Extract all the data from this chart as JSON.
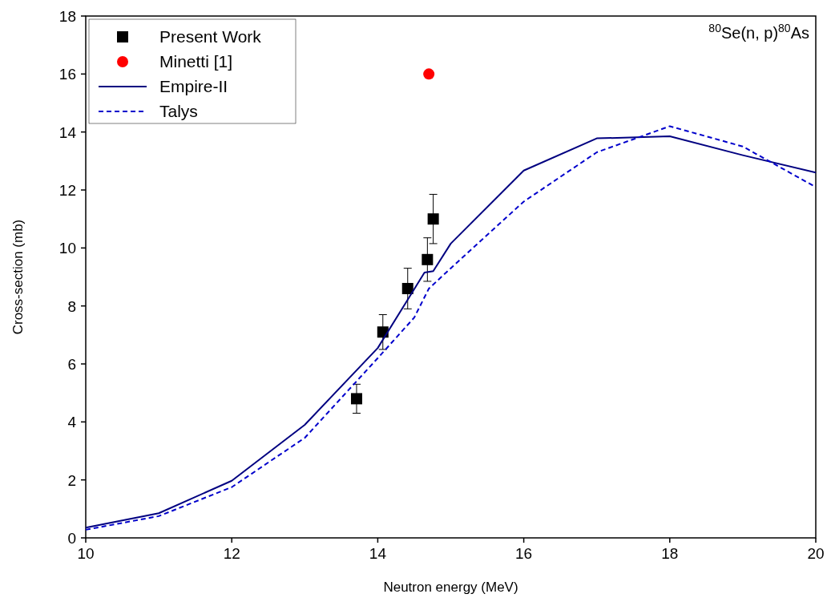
{
  "chart_data": {
    "type": "line",
    "xlabel": "Neutron energy (MeV)",
    "ylabel": "Cross-section (mb)",
    "annotations": [
      "$^{80}$Se(n, p)$^{80}$As"
    ],
    "xlim": [
      10,
      20
    ],
    "xticks": [
      10,
      12,
      14,
      16,
      18,
      20
    ],
    "ylim": [
      0,
      18
    ],
    "yticks": [
      0,
      2,
      4,
      6,
      8,
      10,
      12,
      14,
      16,
      18
    ],
    "grid": false,
    "legend": "top left",
    "series": [
      {
        "name": "Present Work",
        "type": "scatter",
        "marker": "square",
        "color": "#000000",
        "x": [
          13.71,
          14.07,
          14.41,
          14.68,
          14.76
        ],
        "values": [
          4.8,
          7.1,
          8.6,
          9.6,
          11.0
        ],
        "errors": [
          0.5,
          0.6,
          0.7,
          0.75,
          0.85
        ]
      },
      {
        "name": "Minetti [1]",
        "type": "scatter",
        "marker": "circle",
        "color": "#ff0000",
        "x": [
          14.7
        ],
        "values": [
          16.0
        ]
      },
      {
        "name": "Empire-II",
        "marker": "none",
        "line_style": "solid",
        "color": "#000080",
        "x": [
          10,
          11,
          12,
          13,
          14,
          14.64,
          14.76,
          15,
          16,
          17,
          18,
          19,
          20
        ],
        "values": [
          0.35,
          0.85,
          1.97,
          3.9,
          6.55,
          9.15,
          9.2,
          10.15,
          12.67,
          13.78,
          13.85,
          13.2,
          12.6
        ]
      },
      {
        "name": "Talys",
        "marker": "none",
        "line_style": "dashed",
        "color": "#0000cc",
        "x": [
          10,
          11,
          12,
          13,
          14,
          14.5,
          14.7,
          15,
          16,
          17,
          18,
          19,
          20
        ],
        "values": [
          0.28,
          0.75,
          1.75,
          3.45,
          6.2,
          7.6,
          8.6,
          9.3,
          11.6,
          13.3,
          14.2,
          13.5,
          12.1
        ]
      }
    ]
  }
}
